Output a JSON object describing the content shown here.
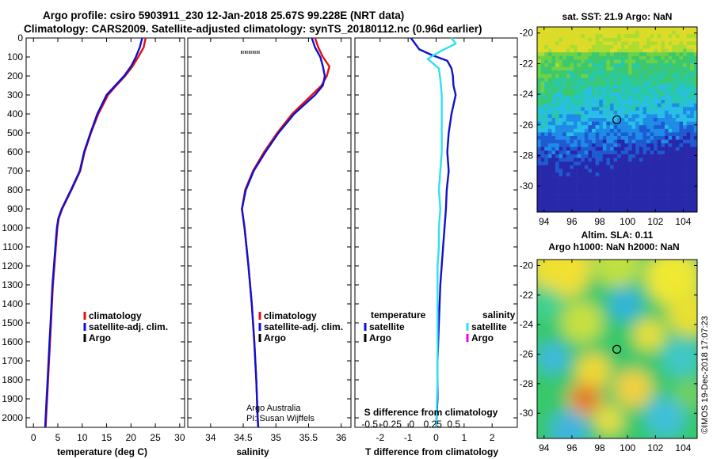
{
  "header": {
    "line1": "Argo profile: csiro 5903911_230 12-Jan-2018 25.67S 99.228E (NRT data)",
    "line2": "Climatology: CARS2009. Satellite-adjusted climatology: synTS_20180112.nc (0.96d earlier)"
  },
  "colors": {
    "climatology": "#e01010",
    "satellite": "#1010d0",
    "argo": "#000000",
    "sat_salinity": "#30e0f0",
    "argo_salinity": "#f000f0"
  },
  "chart_data": [
    {
      "type": "line",
      "id": "temperature",
      "xlabel": "temperature (deg C)",
      "xlim": [
        -1.5,
        31
      ],
      "xticks": [
        0,
        5,
        10,
        15,
        20,
        25,
        30
      ],
      "ylim": [
        2050,
        0
      ],
      "yticks": [
        0,
        100,
        200,
        300,
        400,
        500,
        600,
        700,
        800,
        900,
        1000,
        1100,
        1200,
        1300,
        1400,
        1500,
        1600,
        1700,
        1800,
        1900,
        2000
      ],
      "legend": [
        "climatology",
        "satellite-adj. clim.",
        "Argo"
      ],
      "legend_position": "lower-right",
      "series": [
        {
          "name": "climatology",
          "color": "#e01010",
          "points": [
            [
              0,
              23
            ],
            [
              50,
              22.6
            ],
            [
              100,
              21.5
            ],
            [
              150,
              20.3
            ],
            [
              200,
              18.8
            ],
            [
              250,
              17
            ],
            [
              300,
              15.3
            ],
            [
              400,
              13.3
            ],
            [
              500,
              11.8
            ],
            [
              600,
              10.5
            ],
            [
              700,
              9.6
            ],
            [
              800,
              7.8
            ],
            [
              900,
              5.9
            ],
            [
              950,
              5.2
            ],
            [
              1000,
              4.9
            ],
            [
              1100,
              4.6
            ],
            [
              1200,
              4.3
            ],
            [
              1300,
              4
            ],
            [
              1400,
              3.8
            ],
            [
              1500,
              3.6
            ],
            [
              1600,
              3.4
            ],
            [
              1700,
              3.2
            ],
            [
              1800,
              3
            ],
            [
              1900,
              2.8
            ],
            [
              2000,
              2.6
            ],
            [
              2050,
              2.5
            ]
          ]
        },
        {
          "name": "satellite-adj. clim.",
          "color": "#1010d0",
          "points": [
            [
              0,
              22.3
            ],
            [
              50,
              21.8
            ],
            [
              100,
              21
            ],
            [
              150,
              20
            ],
            [
              200,
              18.6
            ],
            [
              250,
              16.8
            ],
            [
              300,
              15
            ],
            [
              400,
              13.1
            ],
            [
              500,
              11.7
            ],
            [
              600,
              10.4
            ],
            [
              700,
              9.5
            ],
            [
              800,
              7.7
            ],
            [
              900,
              5.8
            ],
            [
              950,
              5.1
            ],
            [
              1000,
              4.8
            ],
            [
              1100,
              4.5
            ],
            [
              1200,
              4.2
            ],
            [
              1300,
              3.9
            ],
            [
              1400,
              3.7
            ],
            [
              1500,
              3.5
            ],
            [
              1600,
              3.3
            ],
            [
              1700,
              3.1
            ],
            [
              1800,
              2.9
            ],
            [
              1900,
              2.7
            ],
            [
              2000,
              2.5
            ],
            [
              2050,
              2.4
            ]
          ]
        }
      ]
    },
    {
      "type": "line",
      "id": "salinity",
      "xlabel": "salinity",
      "xlim": [
        33.65,
        36.15
      ],
      "xticks": [
        34,
        34.5,
        35,
        35.5,
        36
      ],
      "xtick_labels": [
        "34",
        "34.5",
        "35",
        "35.5",
        "36"
      ],
      "ylim": [
        2050,
        0
      ],
      "legend": [
        "climatology",
        "satellite-adj. clim.",
        "Argo"
      ],
      "legend_position": "lower-right",
      "annotation": [
        "Argo Australia",
        "PI: Susan Wijffels"
      ],
      "series": [
        {
          "name": "climatology",
          "color": "#e01010",
          "points": [
            [
              0,
              35.6
            ],
            [
              50,
              35.65
            ],
            [
              100,
              35.72
            ],
            [
              150,
              35.82
            ],
            [
              200,
              35.78
            ],
            [
              250,
              35.7
            ],
            [
              300,
              35.55
            ],
            [
              400,
              35.25
            ],
            [
              500,
              35.02
            ],
            [
              600,
              34.82
            ],
            [
              700,
              34.65
            ],
            [
              800,
              34.53
            ],
            [
              900,
              34.48
            ],
            [
              1000,
              34.52
            ],
            [
              1200,
              34.58
            ],
            [
              1400,
              34.63
            ],
            [
              1600,
              34.67
            ],
            [
              1800,
              34.7
            ],
            [
              2000,
              34.72
            ],
            [
              2050,
              34.73
            ]
          ]
        },
        {
          "name": "satellite-adj. clim.",
          "color": "#1010d0",
          "points": [
            [
              0,
              35.55
            ],
            [
              50,
              35.6
            ],
            [
              100,
              35.68
            ],
            [
              150,
              35.72
            ],
            [
              200,
              35.75
            ],
            [
              250,
              35.72
            ],
            [
              300,
              35.6
            ],
            [
              400,
              35.28
            ],
            [
              500,
              35.04
            ],
            [
              600,
              34.84
            ],
            [
              700,
              34.66
            ],
            [
              800,
              34.54
            ],
            [
              900,
              34.48
            ],
            [
              1000,
              34.52
            ],
            [
              1200,
              34.58
            ],
            [
              1400,
              34.63
            ],
            [
              1600,
              34.67
            ],
            [
              1800,
              34.7
            ],
            [
              2000,
              34.72
            ],
            [
              2050,
              34.73
            ]
          ]
        }
      ]
    },
    {
      "type": "line",
      "id": "difference",
      "xlabel": "T difference from climatology",
      "xlabel_top": "S difference from climatology",
      "xlim": [
        -2.9,
        2.9
      ],
      "xticks": [
        -2,
        -1,
        0,
        1,
        2
      ],
      "top_xticks": [
        -0.5,
        -0.25,
        0,
        0.25,
        0.5
      ],
      "top_xtick_labels": [
        "-0.5",
        "-0.25",
        "0",
        "0.25",
        "0.5"
      ],
      "ylim": [
        2050,
        0
      ],
      "legend_left_title": "temperature",
      "legend_right_title": "salinity",
      "legend_left": [
        "satellite",
        "Argo"
      ],
      "legend_right": [
        "satellite",
        "Argo"
      ],
      "series": [
        {
          "name": "temperature satellite",
          "color": "#1010d0",
          "points": [
            [
              0,
              -0.9
            ],
            [
              60,
              -0.6
            ],
            [
              90,
              -0.15
            ],
            [
              120,
              0.4
            ],
            [
              160,
              0.55
            ],
            [
              200,
              0.6
            ],
            [
              250,
              0.62
            ],
            [
              300,
              0.7
            ],
            [
              400,
              0.55
            ],
            [
              500,
              0.45
            ],
            [
              600,
              0.4
            ],
            [
              700,
              0.45
            ],
            [
              800,
              0.38
            ],
            [
              900,
              0.35
            ],
            [
              1000,
              0.3
            ],
            [
              1100,
              0.25
            ],
            [
              1300,
              0.15
            ],
            [
              1500,
              0.1
            ],
            [
              1700,
              0.05
            ],
            [
              1900,
              0.05
            ],
            [
              2050,
              0
            ]
          ]
        },
        {
          "name": "salinity satellite",
          "color": "#30e0f0",
          "points": [
            [
              0,
              0.55
            ],
            [
              30,
              0.7
            ],
            [
              70,
              0.15
            ],
            [
              110,
              -0.3
            ],
            [
              160,
              0.1
            ],
            [
              220,
              0.15
            ],
            [
              300,
              0.2
            ],
            [
              400,
              0.2
            ],
            [
              500,
              0.2
            ],
            [
              600,
              0.2
            ],
            [
              700,
              0.15
            ],
            [
              800,
              0.1
            ],
            [
              900,
              0.15
            ],
            [
              1000,
              0.1
            ],
            [
              1100,
              0.1
            ],
            [
              1200,
              0.05
            ],
            [
              1400,
              0.05
            ],
            [
              1600,
              0.05
            ],
            [
              1800,
              0.05
            ],
            [
              2050,
              0
            ]
          ]
        }
      ]
    },
    {
      "type": "heatmap",
      "id": "sst_map",
      "title": "sat. SST: 21.9 Argo: NaN",
      "xlim": [
        93.5,
        105
      ],
      "ylim": [
        -31.7,
        -19.6
      ],
      "xticks": [
        94,
        96,
        98,
        100,
        102,
        104
      ],
      "yticks": [
        -20,
        -22,
        -24,
        -26,
        -28,
        -30
      ],
      "marker": [
        99.23,
        -25.67
      ]
    },
    {
      "type": "heatmap",
      "id": "sla_map",
      "title": "Altim. SLA: 0.11",
      "subtitle": "Argo h1000: NaN h2000: NaN",
      "xlim": [
        93.5,
        105
      ],
      "ylim": [
        -31.7,
        -19.6
      ],
      "xticks": [
        94,
        96,
        98,
        100,
        102,
        104
      ],
      "yticks": [
        -20,
        -22,
        -24,
        -26,
        -28,
        -30
      ],
      "marker": [
        99.23,
        -25.67
      ],
      "credit": "©IMOS 19-Dec-2018 17:07:23"
    }
  ]
}
